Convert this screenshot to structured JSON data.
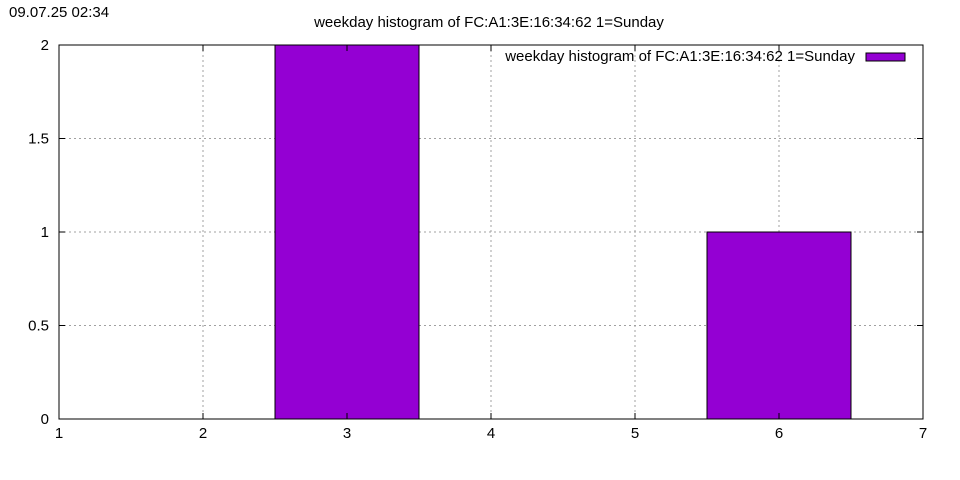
{
  "timestamp": "09.07.25 02:34",
  "chart_data": {
    "type": "bar",
    "title": "weekday histogram of FC:A1:3E:16:34:62 1=Sunday",
    "xlabel": "",
    "ylabel": "",
    "xlim": [
      1,
      7
    ],
    "ylim": [
      0,
      2
    ],
    "x_ticks": [
      1,
      2,
      3,
      4,
      5,
      6,
      7
    ],
    "y_ticks": [
      0,
      0.5,
      1,
      1.5,
      2
    ],
    "x_tick_labels": [
      "1",
      "2",
      "3",
      "4",
      "5",
      "6",
      "7"
    ],
    "y_tick_labels": [
      "0",
      "0.5",
      "1",
      "1.5",
      "2"
    ],
    "bar_width": 1,
    "grid": true,
    "legend_position": "top-right",
    "series": [
      {
        "name": "weekday histogram of FC:A1:3E:16:34:62 1=Sunday",
        "color": "#9400d3",
        "x": [
          3,
          6
        ],
        "values": [
          2,
          1
        ]
      }
    ]
  }
}
